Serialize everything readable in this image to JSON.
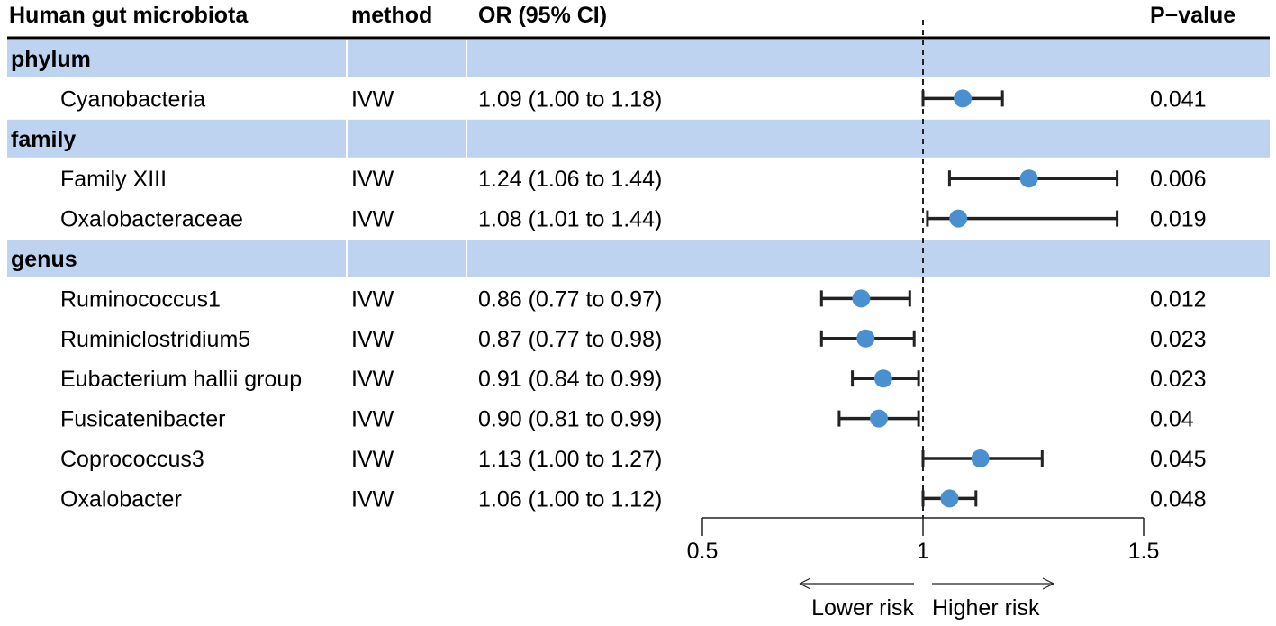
{
  "headers": {
    "taxon": "Human gut microbiota",
    "method": "method",
    "or_ci": "OR (95% CI)",
    "pvalue": "P−value"
  },
  "colors": {
    "band": "#bdd3f0",
    "point": "#4a8fcf",
    "line": "#222222"
  },
  "chart_data": {
    "type": "forest",
    "xlim": [
      0.5,
      1.5
    ],
    "ticks": [
      0.5,
      1,
      1.5
    ],
    "tick_labels": [
      "0.5",
      "1",
      "1.5"
    ],
    "reference": 1,
    "arrows": {
      "left": "Lower risk",
      "right": "Higher risk"
    },
    "groups": [
      {
        "name": "phylum",
        "rows": [
          {
            "taxon": "Cyanobacteria",
            "method": "IVW",
            "or_text": "1.09 (1.00 to 1.18)",
            "or": 1.09,
            "lo": 1.0,
            "hi": 1.18,
            "p": "0.041"
          }
        ]
      },
      {
        "name": "family",
        "rows": [
          {
            "taxon": "Family XIII",
            "method": "IVW",
            "or_text": "1.24 (1.06 to 1.44)",
            "or": 1.24,
            "lo": 1.06,
            "hi": 1.44,
            "p": "0.006"
          },
          {
            "taxon": "Oxalobacteraceae",
            "method": "IVW",
            "or_text": "1.08 (1.01 to 1.44)",
            "or": 1.08,
            "lo": 1.01,
            "hi": 1.44,
            "p": "0.019"
          }
        ]
      },
      {
        "name": "genus",
        "rows": [
          {
            "taxon": "Ruminococcus1",
            "method": "IVW",
            "or_text": "0.86 (0.77 to 0.97)",
            "or": 0.86,
            "lo": 0.77,
            "hi": 0.97,
            "p": "0.012"
          },
          {
            "taxon": "Ruminiclostridium5",
            "method": "IVW",
            "or_text": "0.87 (0.77 to 0.98)",
            "or": 0.87,
            "lo": 0.77,
            "hi": 0.98,
            "p": "0.023"
          },
          {
            "taxon": "Eubacterium hallii group",
            "method": "IVW",
            "or_text": "0.91 (0.84 to 0.99)",
            "or": 0.91,
            "lo": 0.84,
            "hi": 0.99,
            "p": "0.023"
          },
          {
            "taxon": "Fusicatenibacter",
            "method": "IVW",
            "or_text": "0.90 (0.81 to 0.99)",
            "or": 0.9,
            "lo": 0.81,
            "hi": 0.99,
            "p": "0.04"
          },
          {
            "taxon": "Coprococcus3",
            "method": "IVW",
            "or_text": "1.13 (1.00 to 1.27)",
            "or": 1.13,
            "lo": 1.0,
            "hi": 1.27,
            "p": "0.045"
          },
          {
            "taxon": "Oxalobacter",
            "method": "IVW",
            "or_text": "1.06 (1.00 to 1.12)",
            "or": 1.06,
            "lo": 1.0,
            "hi": 1.12,
            "p": "0.048"
          }
        ]
      }
    ]
  }
}
